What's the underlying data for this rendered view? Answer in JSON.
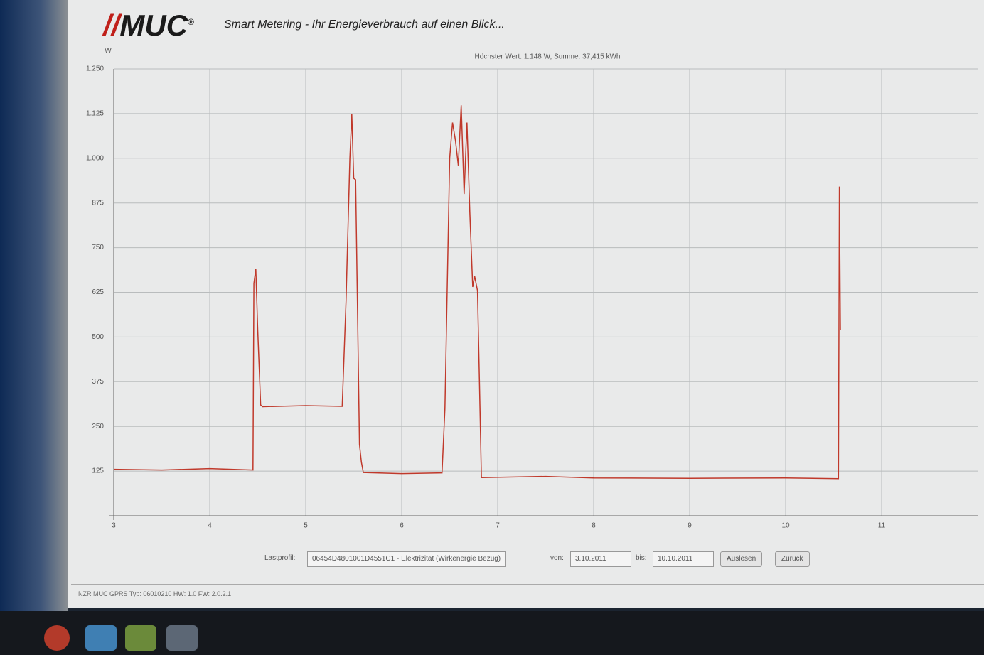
{
  "header": {
    "logo": "MUC",
    "logo_mark": "®",
    "tagline": "Smart Metering - Ihr Energieverbrauch auf einen Blick..."
  },
  "chart_data": {
    "type": "line",
    "title": "Höchster Wert: 1.148 W, Summe: 37,415 kWh",
    "y_label": "W",
    "x": [
      3,
      3.5,
      4,
      4.45,
      4.46,
      4.48,
      4.5,
      4.53,
      4.55,
      5,
      5.38,
      5.42,
      5.46,
      5.48,
      5.5,
      5.52,
      5.56,
      5.58,
      5.6,
      6,
      6.42,
      6.45,
      6.5,
      6.53,
      6.56,
      6.59,
      6.62,
      6.65,
      6.68,
      6.71,
      6.74,
      6.76,
      6.79,
      6.81,
      6.83,
      7.5,
      8,
      9,
      10,
      10.55,
      10.56,
      10.57
    ],
    "values": [
      130,
      128,
      132,
      128,
      650,
      690,
      520,
      310,
      305,
      308,
      306,
      600,
      1000,
      1123,
      944,
      940,
      200,
      150,
      121,
      118,
      120,
      300,
      1000,
      1100,
      1050,
      980,
      1148,
      900,
      1100,
      850,
      640,
      670,
      630,
      380,
      107,
      110,
      106,
      105,
      106,
      104,
      921,
      520
    ],
    "color": "#c0392b",
    "xlim": [
      3,
      12
    ],
    "xticks": [
      3,
      4,
      5,
      6,
      7,
      8,
      9,
      10,
      11
    ],
    "ylim": [
      0,
      1250
    ],
    "yticks": [
      125,
      250,
      375,
      500,
      625,
      750,
      875,
      {
        "value": 1000,
        "label": "1.000"
      },
      {
        "value": 1125,
        "label": "1.125"
      },
      {
        "value": 1250,
        "label": "1.250"
      }
    ],
    "grid": true
  },
  "controls": {
    "profile_label": "Lastprofil:",
    "profile_value": "06454D4801001D4551C1 - Elektrizität (Wirkenergie Bezug)",
    "from_label": "von:",
    "from_value": "3.10.2011",
    "to_label": "bis:",
    "to_value": "10.10.2011",
    "read_button": "Auslesen",
    "back_button": "Zurück"
  },
  "footer": {
    "device": "NZR MUC GPRS Typ: 06010210 HW: 1.0 FW: 2.0.2.1"
  }
}
